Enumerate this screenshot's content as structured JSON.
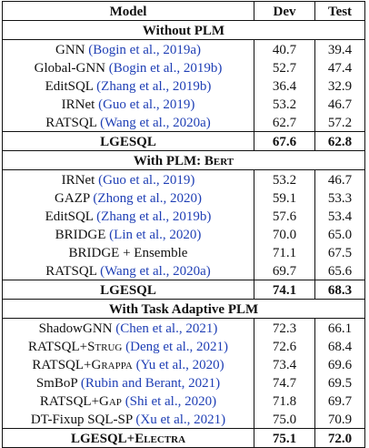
{
  "header": {
    "model": "Model",
    "dev": "Dev",
    "test": "Test"
  },
  "sections": [
    {
      "title": "Without PLM",
      "rows": [
        {
          "name": "GNN ",
          "cite": "(Bogin et al., 2019a)",
          "dev": "40.7",
          "test": "39.4"
        },
        {
          "name": "Global-GNN ",
          "cite": "(Bogin et al., 2019b)",
          "dev": "52.7",
          "test": "47.4"
        },
        {
          "name": "EditSQL ",
          "cite": "(Zhang et al., 2019b)",
          "dev": "36.4",
          "test": "32.9"
        },
        {
          "name": "IRNet ",
          "cite": "(Guo et al., 2019)",
          "dev": "53.2",
          "test": "46.7"
        },
        {
          "name": "RATSQL ",
          "cite": "(Wang et al., 2020a)",
          "dev": "62.7",
          "test": "57.2"
        }
      ],
      "ours": {
        "name": "LGESQL",
        "dev": "67.6",
        "test": "62.8"
      }
    },
    {
      "title": "With PLM: ",
      "title_sc": "Bert",
      "rows": [
        {
          "name": "IRNet ",
          "cite": "(Guo et al., 2019)",
          "dev": "53.2",
          "test": "46.7"
        },
        {
          "name": "GAZP ",
          "cite": "(Zhong et al., 2020)",
          "dev": "59.1",
          "test": "53.3"
        },
        {
          "name": "EditSQL ",
          "cite": "(Zhang et al., 2019b)",
          "dev": "57.6",
          "test": "53.4"
        },
        {
          "name": "BRIDGE ",
          "cite": "(Lin et al., 2020)",
          "dev": "70.0",
          "test": "65.0"
        },
        {
          "name": "BRIDGE + Ensemble",
          "cite": "",
          "dev": "71.1",
          "test": "67.5"
        },
        {
          "name": "RATSQL ",
          "cite": "(Wang et al., 2020a)",
          "dev": "69.7",
          "test": "65.6"
        }
      ],
      "ours": {
        "name": "LGESQL",
        "dev": "74.1",
        "test": "68.3"
      }
    },
    {
      "title": "With Task Adaptive PLM",
      "rows": [
        {
          "name": "ShadowGNN ",
          "cite": "(Chen et al., 2021)",
          "dev": "72.3",
          "test": "66.1"
        },
        {
          "name": "RATSQL+",
          "sc": "Strug",
          "cite": "(Deng et al., 2021)",
          "dev": "72.6",
          "test": "68.4"
        },
        {
          "name": "RATSQL+",
          "sc": "Grappa",
          "cite": "(Yu et al., 2020)",
          "dev": "73.4",
          "test": "69.6"
        },
        {
          "name": "SmBoP ",
          "cite": "(Rubin and Berant, 2021)",
          "dev": "74.7",
          "test": "69.5"
        },
        {
          "name": "RATSQL+",
          "sc": "Gap",
          "cite": "(Shi et al., 2020)",
          "dev": "71.8",
          "test": "69.7"
        },
        {
          "name": "DT-Fixup SQL-SP ",
          "cite": "(Xu et al., 2021)",
          "dev": "75.0",
          "test": "70.9"
        }
      ],
      "ours": {
        "name": "LGESQL+",
        "sc": "Electra",
        "dev": "75.1",
        "test": "72.0"
      }
    }
  ]
}
